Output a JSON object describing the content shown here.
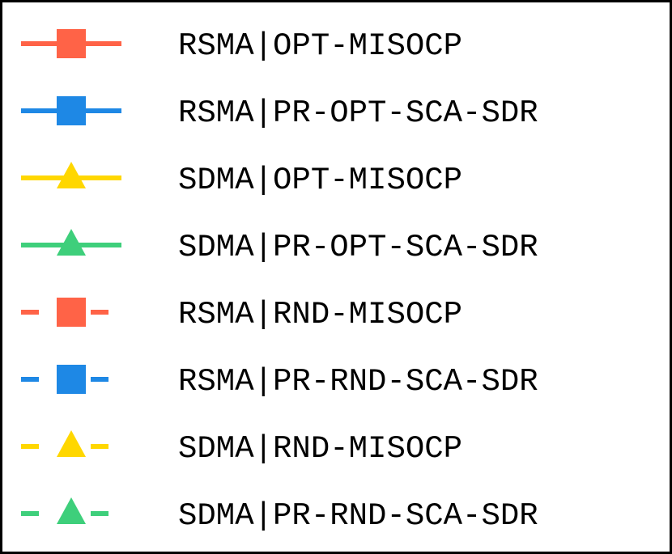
{
  "chart_data": {
    "type": "legend",
    "legend": [
      {
        "label": "RSMA|OPT-MISOCP",
        "color": "#ff6347",
        "marker": "square",
        "line": "solid"
      },
      {
        "label": "RSMA|PR-OPT-SCA-SDR",
        "color": "#1e88e5",
        "marker": "square",
        "line": "solid"
      },
      {
        "label": "SDMA|OPT-MISOCP",
        "color": "#ffd700",
        "marker": "triangle",
        "line": "solid"
      },
      {
        "label": "SDMA|PR-OPT-SCA-SDR",
        "color": "#3ecf7b",
        "marker": "triangle",
        "line": "solid"
      },
      {
        "label": "RSMA|RND-MISOCP",
        "color": "#ff6347",
        "marker": "square",
        "line": "dashed"
      },
      {
        "label": "RSMA|PR-RND-SCA-SDR",
        "color": "#1e88e5",
        "marker": "square",
        "line": "dashed"
      },
      {
        "label": "SDMA|RND-MISOCP",
        "color": "#ffd700",
        "marker": "triangle",
        "line": "dashed"
      },
      {
        "label": "SDMA|PR-RND-SCA-SDR",
        "color": "#3ecf7b",
        "marker": "triangle",
        "line": "dashed"
      }
    ]
  }
}
